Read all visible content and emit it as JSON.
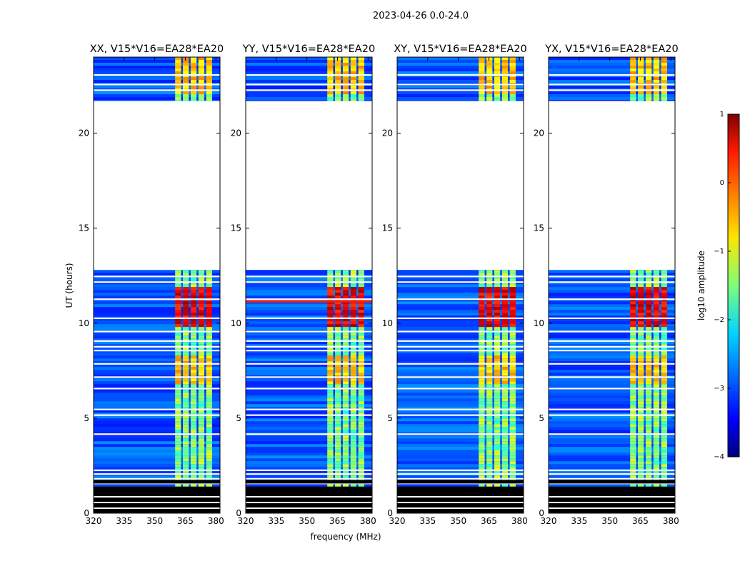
{
  "chart_data": {
    "type": "heatmap",
    "suptitle": "2023-04-26 0.0-24.0",
    "xlabel": "frequency (MHz)",
    "ylabel": "UT (hours)",
    "xlim": [
      320,
      382
    ],
    "ylim": [
      0,
      24
    ],
    "xticks": [
      320,
      335,
      350,
      365,
      380
    ],
    "yticks": [
      0,
      5,
      10,
      15,
      20
    ],
    "panels": [
      {
        "title": "XX, V15*V16=EA28*EA20",
        "strong_band_mhz": [
          360,
          379
        ]
      },
      {
        "title": "YY, V15*V16=EA28*EA20",
        "strong_band_mhz": [
          360,
          379
        ]
      },
      {
        "title": "XY, V15*V16=EA28*EA20",
        "strong_band_mhz": [
          360,
          379
        ]
      },
      {
        "title": "YX, V15*V16=EA28*EA20",
        "strong_band_mhz": [
          360,
          379
        ]
      }
    ],
    "data_gap_hours": [
      12.8,
      21.7
    ],
    "flagged_black_hours": [
      0,
      1.4
    ],
    "colorbar": {
      "label": "log10 amplitude",
      "range": [
        -4,
        1
      ],
      "ticks": [
        "1",
        "0",
        "−1",
        "−2",
        "−3",
        "−4"
      ],
      "colormap": "jet"
    }
  }
}
